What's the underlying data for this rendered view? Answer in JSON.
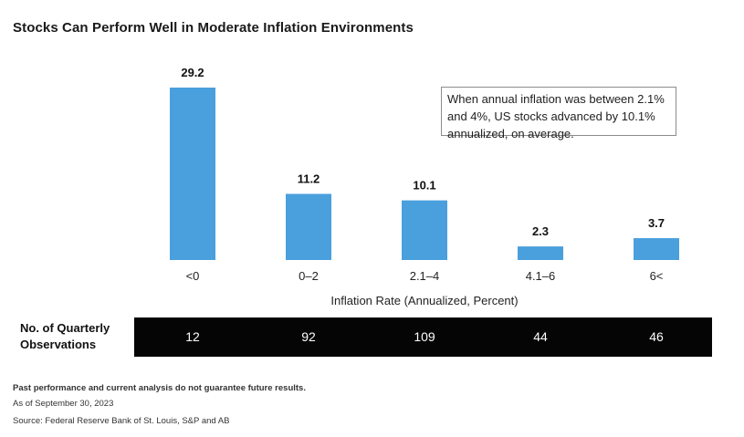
{
  "title": "Stocks Can Perform Well in Moderate Inflation Environments",
  "annotation": "When annual inflation was between 2.1% and 4%, US stocks advanced by 10.1% annualized, on average.",
  "chart_data": {
    "type": "bar",
    "title": "Stocks Can Perform Well in Moderate Inflation Environments",
    "xlabel": "Inflation Rate (Annualized, Percent)",
    "ylabel": "",
    "categories": [
      "<0",
      "0–2",
      "2.1–4",
      "4.1–6",
      "6<"
    ],
    "values": [
      29.2,
      11.2,
      10.1,
      2.3,
      3.7
    ],
    "data_labels": [
      "29.2",
      "11.2",
      "10.1",
      "2.3",
      "3.7"
    ],
    "ylim": [
      0,
      29.2
    ],
    "grid": false,
    "legend": "none",
    "bar_color": "#4a9fdd"
  },
  "observations": {
    "label": "No. of Quarterly Observations",
    "values": [
      "12",
      "92",
      "109",
      "44",
      "46"
    ]
  },
  "footnotes": {
    "disclaimer": "Past performance and current analysis do not guarantee future results.",
    "as_of": "As of September 30, 2023",
    "source": "Source: Federal Reserve Bank of St. Louis, S&P and AB"
  }
}
